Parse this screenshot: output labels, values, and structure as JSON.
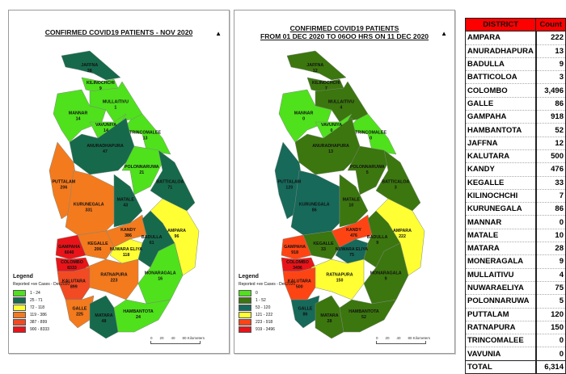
{
  "maps": [
    {
      "title_lines": [
        "CONFIRMED COVID19 PATIENTS - NOV 2020"
      ],
      "north_label": "N",
      "legend": {
        "title": "Legend",
        "subtitle": "Reported +ve Cases - Dec2020",
        "bins": [
          {
            "label": "1 - 24",
            "min": 0,
            "max": 24,
            "color": "#4fe11c"
          },
          {
            "label": "25 - 71",
            "min": 25,
            "max": 71,
            "color": "#17694c"
          },
          {
            "label": "72 - 118",
            "min": 72,
            "max": 118,
            "color": "#ffff33"
          },
          {
            "label": "119 - 386",
            "min": 119,
            "max": 386,
            "color": "#f47a1e"
          },
          {
            "label": "387 - 899",
            "min": 387,
            "max": 899,
            "color": "#f24a22"
          },
          {
            "label": "900 - 8333",
            "min": 900,
            "max": 8333,
            "color": "#e8141a"
          }
        ]
      },
      "scale": {
        "ticks": [
          "0",
          "20",
          "40",
          "80 Kilometers"
        ]
      },
      "districts": {
        "JAFFNA": 38,
        "KILINOCHCHI": 9,
        "MULLAITIVU": 1,
        "MANNAR": 14,
        "VAVUNIYA": 14,
        "TRINCOMALEE": 13,
        "ANURADHAPURA": 47,
        "PUTTALAM": 206,
        "KURUNEGALA": 331,
        "POLONNARUWA": 21,
        "MATALE": 43,
        "BATTICALOA": 71,
        "AMPARA": 96,
        "KANDY": 386,
        "KEGALLE": 206,
        "GAMPAHA": 6040,
        "COLOMBO": 8333,
        "NUWARA ELIYA": 118,
        "BADULLA": 61,
        "MONARAGALA": 16,
        "RATNAPURA": 223,
        "KALUTARA": 899,
        "GALLE": 225,
        "MATARA": 48,
        "HAMBANTOTA": 24
      }
    },
    {
      "title_lines": [
        "CONFIRMED COVID19 PATIENTS",
        "FROM 01 DEC  2020 TO 06OO HRS ON 11 DEC 2020"
      ],
      "north_label": "N",
      "legend": {
        "title": "Legend",
        "subtitle": "Reported +ve Cases - Dec2020",
        "bins": [
          {
            "label": "0",
            "min": 0,
            "max": 0,
            "color": "#4fe11c"
          },
          {
            "label": "1 - 52",
            "min": 1,
            "max": 52,
            "color": "#3c760f"
          },
          {
            "label": "53 - 120",
            "min": 53,
            "max": 120,
            "color": "#17695a"
          },
          {
            "label": "121 - 222",
            "min": 121,
            "max": 222,
            "color": "#ffff33"
          },
          {
            "label": "223 - 918",
            "min": 223,
            "max": 918,
            "color": "#ff4414"
          },
          {
            "label": "919 - 3496",
            "min": 919,
            "max": 3496,
            "color": "#e8141a"
          }
        ]
      },
      "scale": {
        "ticks": [
          "0",
          "20",
          "40",
          "80 Kilometers"
        ]
      },
      "districts": {
        "JAFFNA": 12,
        "KILINOCHCHI": 7,
        "MULLAITIVU": 4,
        "MANNAR": 0,
        "VAVUNIYA": 0,
        "TRINCOMALEE": 0,
        "ANURADHAPURA": 13,
        "PUTTALAM": 120,
        "KURUNEGALA": 86,
        "POLONNARUWA": 5,
        "MATALE": 10,
        "BATTICALOA": 3,
        "AMPARA": 222,
        "KANDY": 476,
        "KEGALLE": 33,
        "GAMPAHA": 918,
        "COLOMBO": 3496,
        "NUWARA ELIYA": 75,
        "BADULLA": 9,
        "MONARAGALA": 9,
        "RATNAPURA": 150,
        "KALUTARA": 500,
        "GALLE": 86,
        "MATARA": 28,
        "HAMBANTOTA": 52
      }
    }
  ],
  "table": {
    "header": {
      "district": "DISTRICT",
      "count": "Count"
    },
    "rows": [
      {
        "district": "AMPARA",
        "count": "222"
      },
      {
        "district": "ANURADHAPURA",
        "count": "13"
      },
      {
        "district": "BADULLA",
        "count": "9"
      },
      {
        "district": "BATTICOLOA",
        "count": "3"
      },
      {
        "district": "COLOMBO",
        "count": "3,496"
      },
      {
        "district": "GALLE",
        "count": "86"
      },
      {
        "district": "GAMPAHA",
        "count": "918"
      },
      {
        "district": "HAMBANTOTA",
        "count": "52"
      },
      {
        "district": "JAFFNA",
        "count": "12"
      },
      {
        "district": "KALUTARA",
        "count": "500"
      },
      {
        "district": "KANDY",
        "count": "476"
      },
      {
        "district": "KEGALLE",
        "count": "33"
      },
      {
        "district": "KILINOCHCHI",
        "count": "7"
      },
      {
        "district": "KURUNEGALA",
        "count": "86"
      },
      {
        "district": "MANNAR",
        "count": "0"
      },
      {
        "district": "MATALE",
        "count": "10"
      },
      {
        "district": "MATARA",
        "count": "28"
      },
      {
        "district": "MONERAGALA",
        "count": "9"
      },
      {
        "district": "MULLAITIVU",
        "count": "4"
      },
      {
        "district": "NUWARAELIYA",
        "count": "75"
      },
      {
        "district": "POLONNARUWA",
        "count": "5"
      },
      {
        "district": "PUTTALAM",
        "count": "120"
      },
      {
        "district": "RATNAPURA",
        "count": "150"
      },
      {
        "district": "TRINCOMALEE",
        "count": "0"
      },
      {
        "district": "VAVUNIA",
        "count": "0"
      }
    ],
    "total": {
      "district": "TOTAL",
      "count": "6,314"
    }
  }
}
